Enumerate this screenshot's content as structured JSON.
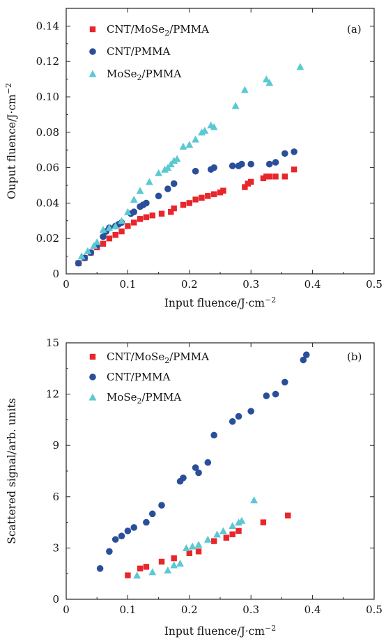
{
  "chart_data": [
    {
      "type": "scatter",
      "panel_label": "(a)",
      "xlabel": "Input fluence/J·cm",
      "xlabel_exp": "−2",
      "ylabel": "Ouput fluence/J·cm",
      "ylabel_exp": "−2",
      "xlim": [
        0,
        0.5
      ],
      "ylim": [
        0,
        0.15
      ],
      "xticks": [
        0,
        0.1,
        0.2,
        0.3,
        0.4,
        0.5
      ],
      "xtick_labels": [
        "0",
        "0.1",
        "0.2",
        "0.3",
        "0.4",
        "0.5"
      ],
      "yticks": [
        0,
        0.02,
        0.04,
        0.06,
        0.08,
        0.1,
        0.12,
        0.14
      ],
      "ytick_labels": [
        "0",
        "0.02",
        "0.04",
        "0.06",
        "0.08",
        "0.10",
        "0.12",
        "0.14"
      ],
      "legend_position": "top-left",
      "series": [
        {
          "name": "CNT/MoSe",
          "name_sub": "2",
          "name_suffix": "/PMMA",
          "marker": "square",
          "color": "#e8262b",
          "x": [
            0.02,
            0.03,
            0.04,
            0.05,
            0.06,
            0.07,
            0.08,
            0.09,
            0.1,
            0.11,
            0.12,
            0.13,
            0.14,
            0.155,
            0.17,
            0.175,
            0.19,
            0.2,
            0.21,
            0.22,
            0.23,
            0.24,
            0.25,
            0.255,
            0.29,
            0.295,
            0.3,
            0.32,
            0.325,
            0.33,
            0.34,
            0.355,
            0.37
          ],
          "y": [
            0.006,
            0.009,
            0.012,
            0.015,
            0.017,
            0.02,
            0.022,
            0.024,
            0.027,
            0.029,
            0.031,
            0.032,
            0.033,
            0.034,
            0.035,
            0.037,
            0.039,
            0.04,
            0.042,
            0.043,
            0.044,
            0.045,
            0.046,
            0.047,
            0.049,
            0.051,
            0.052,
            0.054,
            0.055,
            0.055,
            0.055,
            0.055,
            0.059
          ]
        },
        {
          "name": "CNT/PMMA",
          "marker": "circle",
          "color": "#2a4f9a",
          "x": [
            0.02,
            0.03,
            0.04,
            0.05,
            0.06,
            0.065,
            0.07,
            0.08,
            0.085,
            0.09,
            0.105,
            0.11,
            0.12,
            0.125,
            0.13,
            0.15,
            0.165,
            0.175,
            0.21,
            0.235,
            0.24,
            0.27,
            0.28,
            0.285,
            0.3,
            0.33,
            0.34,
            0.355,
            0.37
          ],
          "y": [
            0.006,
            0.009,
            0.012,
            0.016,
            0.021,
            0.024,
            0.026,
            0.027,
            0.028,
            0.029,
            0.034,
            0.035,
            0.038,
            0.039,
            0.04,
            0.044,
            0.048,
            0.051,
            0.058,
            0.059,
            0.06,
            0.061,
            0.061,
            0.062,
            0.062,
            0.062,
            0.063,
            0.068,
            0.069
          ]
        },
        {
          "name": "MoSe",
          "name_sub": "2",
          "name_suffix": "/PMMA",
          "marker": "triangle",
          "color": "#5cc8d2",
          "x": [
            0.025,
            0.035,
            0.045,
            0.05,
            0.06,
            0.07,
            0.08,
            0.09,
            0.1,
            0.11,
            0.12,
            0.135,
            0.15,
            0.16,
            0.165,
            0.17,
            0.175,
            0.18,
            0.19,
            0.2,
            0.21,
            0.22,
            0.225,
            0.235,
            0.24,
            0.275,
            0.29,
            0.325,
            0.33,
            0.38
          ],
          "y": [
            0.01,
            0.013,
            0.016,
            0.018,
            0.025,
            0.026,
            0.027,
            0.03,
            0.035,
            0.042,
            0.047,
            0.052,
            0.057,
            0.059,
            0.06,
            0.062,
            0.064,
            0.065,
            0.072,
            0.073,
            0.076,
            0.08,
            0.081,
            0.084,
            0.083,
            0.095,
            0.104,
            0.11,
            0.108,
            0.117
          ]
        }
      ]
    },
    {
      "type": "scatter",
      "panel_label": "(b)",
      "xlabel": "Input fluence/J·cm",
      "xlabel_exp": "−2",
      "ylabel": "Scattered signal/arb. units",
      "xlim": [
        0,
        0.5
      ],
      "ylim": [
        0,
        15
      ],
      "xticks": [
        0,
        0.1,
        0.2,
        0.3,
        0.4,
        0.5
      ],
      "xtick_labels": [
        "0",
        "0.1",
        "0.2",
        "0.3",
        "0.4",
        "0.5"
      ],
      "yticks": [
        0,
        3,
        6,
        9,
        12,
        15
      ],
      "ytick_labels": [
        "0",
        "3",
        "6",
        "9",
        "12",
        "15"
      ],
      "legend_position": "top-left",
      "series": [
        {
          "name": "CNT/MoSe",
          "name_sub": "2",
          "name_suffix": "/PMMA",
          "marker": "square",
          "color": "#e8262b",
          "x": [
            0.1,
            0.12,
            0.13,
            0.155,
            0.175,
            0.2,
            0.215,
            0.24,
            0.26,
            0.27,
            0.28,
            0.32,
            0.36
          ],
          "y": [
            1.4,
            1.8,
            1.9,
            2.2,
            2.4,
            2.7,
            2.8,
            3.4,
            3.6,
            3.8,
            4.0,
            4.5,
            4.9
          ]
        },
        {
          "name": "CNT/PMMA",
          "marker": "circle",
          "color": "#2a4f9a",
          "x": [
            0.055,
            0.07,
            0.08,
            0.09,
            0.1,
            0.11,
            0.13,
            0.14,
            0.155,
            0.185,
            0.19,
            0.21,
            0.215,
            0.23,
            0.24,
            0.27,
            0.28,
            0.3,
            0.325,
            0.34,
            0.355,
            0.385,
            0.39
          ],
          "y": [
            1.8,
            2.8,
            3.5,
            3.7,
            4.0,
            4.2,
            4.5,
            5.0,
            5.5,
            6.9,
            7.1,
            7.7,
            7.4,
            8.0,
            9.6,
            10.4,
            10.7,
            11.0,
            11.9,
            12.0,
            12.7,
            14.0,
            14.3
          ]
        },
        {
          "name": "MoSe",
          "name_sub": "2",
          "name_suffix": "/PMMA",
          "marker": "triangle",
          "color": "#5cc8d2",
          "x": [
            0.115,
            0.14,
            0.165,
            0.175,
            0.185,
            0.195,
            0.205,
            0.215,
            0.23,
            0.245,
            0.255,
            0.27,
            0.28,
            0.285,
            0.305
          ],
          "y": [
            1.4,
            1.6,
            1.7,
            2.0,
            2.1,
            3.0,
            3.1,
            3.2,
            3.5,
            3.8,
            4.0,
            4.3,
            4.5,
            4.6,
            5.8
          ]
        }
      ]
    }
  ]
}
